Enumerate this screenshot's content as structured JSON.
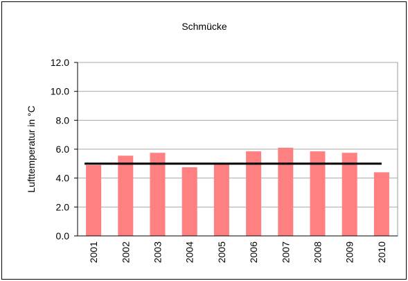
{
  "chart_data": {
    "type": "bar",
    "title": "Schmücke",
    "y_label": "Lufttemperatur in °C",
    "categories": [
      "2001",
      "2002",
      "2003",
      "2004",
      "2005",
      "2006",
      "2007",
      "2008",
      "2009",
      "2010"
    ],
    "values": [
      4.9,
      5.55,
      5.75,
      4.75,
      4.95,
      5.85,
      6.1,
      5.85,
      5.75,
      4.4
    ],
    "color": "#ff8080",
    "reference_line": {
      "value": 5.0,
      "color": "#000000"
    },
    "ylim": [
      0,
      12
    ],
    "yticks": [
      {
        "value": 0,
        "label": "0.0"
      },
      {
        "value": 2,
        "label": "2.0"
      },
      {
        "value": 4,
        "label": "4.0"
      },
      {
        "value": 6,
        "label": "6.0"
      },
      {
        "value": 8,
        "label": "8.0"
      },
      {
        "value": 10,
        "label": "10.0"
      },
      {
        "value": 12,
        "label": "12.0"
      }
    ],
    "grid": true
  }
}
